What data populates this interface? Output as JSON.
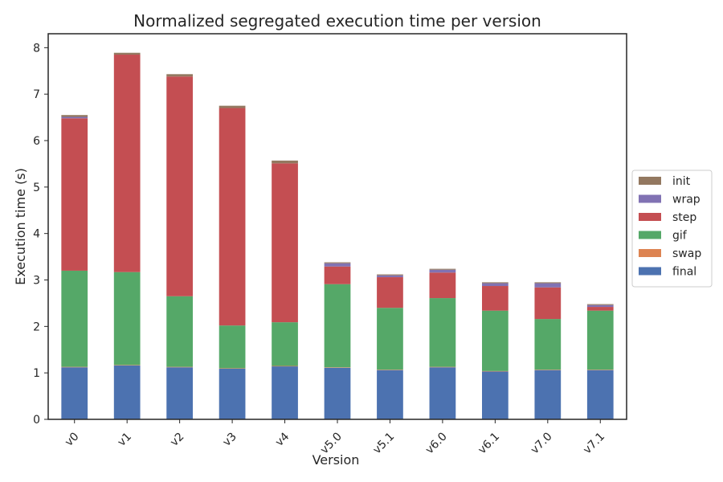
{
  "chart_data": {
    "type": "bar",
    "stacked": true,
    "title": "Normalized segregated execution time per version",
    "xlabel": "Version",
    "ylabel": "Execution time (s)",
    "ylim": [
      0,
      8.3
    ],
    "yticks": [
      0,
      1,
      2,
      3,
      4,
      5,
      6,
      7,
      8
    ],
    "grid": false,
    "legend_position": "center-right",
    "categories": [
      "v0",
      "v1",
      "v2",
      "v3",
      "v4",
      "v5.0",
      "v5.1",
      "v6.0",
      "v6.1",
      "v7.0",
      "v7.1"
    ],
    "series": [
      {
        "name": "final",
        "color": "#4c72b0",
        "values": [
          1.12,
          1.16,
          1.12,
          1.09,
          1.14,
          1.11,
          1.06,
          1.12,
          1.03,
          1.06,
          1.06
        ]
      },
      {
        "name": "swap",
        "color": "#dd8452",
        "values": [
          0.01,
          0.01,
          0.01,
          0.01,
          0.01,
          0.01,
          0.01,
          0.01,
          0.01,
          0.01,
          0.01
        ]
      },
      {
        "name": "gif",
        "color": "#55a868",
        "values": [
          2.07,
          2.0,
          1.52,
          0.92,
          0.94,
          1.79,
          1.33,
          1.48,
          1.3,
          1.09,
          1.27
        ]
      },
      {
        "name": "step",
        "color": "#c44e52",
        "values": [
          3.28,
          4.68,
          4.73,
          4.68,
          3.42,
          0.38,
          0.66,
          0.55,
          0.53,
          0.68,
          0.08
        ]
      },
      {
        "name": "wrap",
        "color": "#8172b3",
        "values": [
          0.03,
          0.0,
          0.0,
          0.0,
          0.0,
          0.07,
          0.04,
          0.06,
          0.06,
          0.09,
          0.04
        ]
      },
      {
        "name": "init",
        "color": "#937860",
        "values": [
          0.04,
          0.04,
          0.05,
          0.05,
          0.06,
          0.02,
          0.02,
          0.02,
          0.02,
          0.02,
          0.02
        ]
      }
    ],
    "legend_order": [
      "init",
      "wrap",
      "step",
      "gif",
      "swap",
      "final"
    ]
  }
}
